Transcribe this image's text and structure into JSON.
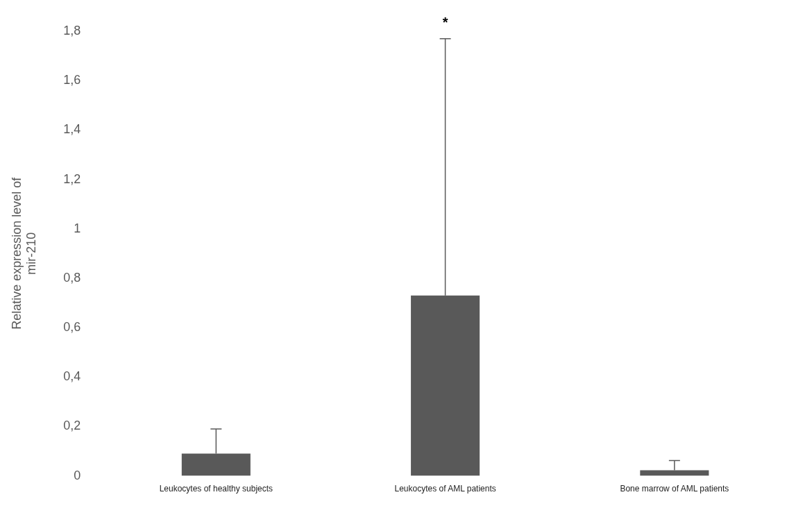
{
  "chart_data": {
    "type": "bar",
    "ylabel": "Relative expression level of mir-210",
    "categories": [
      "Leukocytes of healthy subjects",
      "Leukocytes of AML patients",
      "Bone marrow of AML patients"
    ],
    "values": [
      0.09,
      0.73,
      0.023
    ],
    "color": "#595959",
    "errors": [
      [
        0.09,
        0.19
      ],
      [
        0.73,
        1.77
      ],
      [
        0.023,
        0.062
      ]
    ],
    "ylim": [
      0,
      1.8
    ],
    "yticks": [
      {
        "value": 0,
        "label": "0"
      },
      {
        "value": 0.2,
        "label": "0,2"
      },
      {
        "value": 0.4,
        "label": "0,4"
      },
      {
        "value": 0.6,
        "label": "0,6"
      },
      {
        "value": 0.8,
        "label": "0,8"
      },
      {
        "value": 1,
        "label": "1"
      },
      {
        "value": 1.2,
        "label": "1,2"
      },
      {
        "value": 1.4,
        "label": "1,4"
      },
      {
        "value": 1.6,
        "label": "1,6"
      },
      {
        "value": 1.8,
        "label": "1,8"
      }
    ],
    "annotations": [
      "*"
    ],
    "grid": false,
    "legend": false
  }
}
